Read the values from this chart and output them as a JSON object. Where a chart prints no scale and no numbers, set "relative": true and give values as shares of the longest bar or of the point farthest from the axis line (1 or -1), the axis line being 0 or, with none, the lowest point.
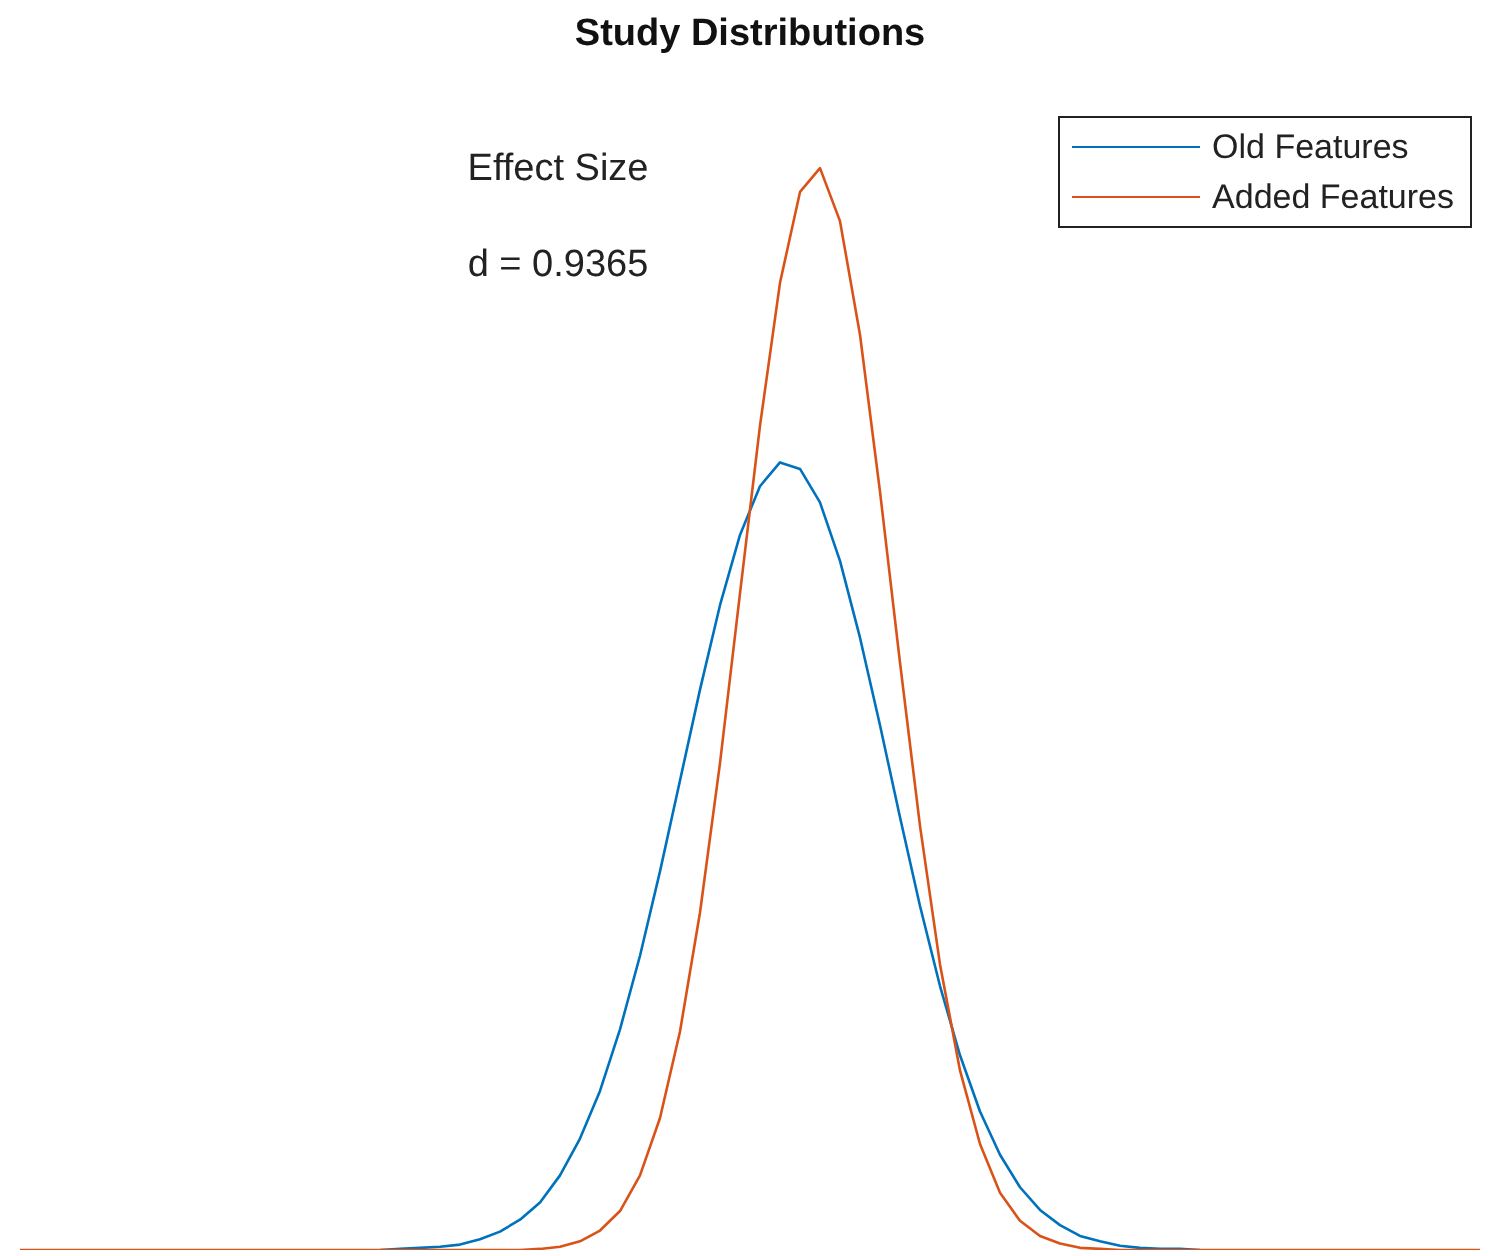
{
  "chart_data": {
    "type": "line",
    "title": "Study Distributions",
    "relative": true,
    "legend": "top right",
    "marker": "none",
    "line_style": "solid",
    "annotations": [
      "Effect Size",
      "d = 0.9365"
    ],
    "categories": [
      null,
      null,
      null,
      null,
      null,
      null,
      null,
      null,
      null,
      null,
      null,
      null,
      null,
      null,
      null,
      null,
      null,
      null,
      null,
      null,
      null,
      null,
      null,
      null,
      null,
      null,
      null,
      null,
      null,
      null,
      null,
      null,
      null,
      null,
      null,
      null,
      null,
      null,
      null,
      null,
      null,
      null,
      null,
      null,
      null,
      null,
      null,
      null,
      null,
      null,
      null,
      null,
      null,
      null,
      null,
      null,
      null,
      null,
      null,
      null,
      null,
      null,
      null,
      null,
      null,
      null,
      null,
      null,
      null,
      null,
      null,
      null,
      null,
      null
    ],
    "series": [
      {
        "name": "Old Features",
        "color": "#0072bd",
        "values": [
          null,
          null,
          null,
          null,
          null,
          null,
          null,
          null,
          null,
          null,
          null,
          null,
          null,
          null,
          null,
          null,
          null,
          null,
          0,
          0.001,
          0.002,
          0.003,
          0.005,
          0.01,
          0.017,
          0.028,
          0.044,
          0.069,
          0.103,
          0.147,
          0.204,
          0.272,
          0.35,
          0.434,
          0.518,
          0.596,
          0.661,
          0.706,
          0.728,
          0.722,
          0.691,
          0.637,
          0.566,
          0.485,
          0.4,
          0.318,
          0.244,
          0.18,
          0.128,
          0.088,
          0.058,
          0.037,
          0.023,
          0.013,
          0.008,
          0.004,
          0.002,
          0.001,
          0.001,
          0,
          null,
          null,
          null,
          null,
          null,
          null,
          null,
          null,
          null,
          null,
          null,
          null,
          null,
          null
        ]
      },
      {
        "name": "Added Features",
        "color": "#d95319",
        "values": [
          0,
          0,
          0,
          0,
          0,
          0,
          0,
          0,
          0,
          0,
          0,
          0,
          0,
          0,
          0,
          0,
          0,
          0,
          0,
          0,
          0,
          0,
          0,
          0,
          0,
          0,
          0.001,
          0.003,
          0.008,
          0.018,
          0.036,
          0.069,
          0.122,
          0.202,
          0.312,
          0.45,
          0.607,
          0.762,
          0.894,
          0.978,
          1,
          0.951,
          0.846,
          0.701,
          0.543,
          0.392,
          0.264,
          0.166,
          0.098,
          0.053,
          0.027,
          0.013,
          0.006,
          0.002,
          0.001,
          0,
          0,
          0,
          0,
          0,
          0,
          0,
          0,
          0,
          0,
          0,
          0,
          0,
          0,
          0,
          0,
          0,
          0,
          0
        ]
      }
    ]
  }
}
